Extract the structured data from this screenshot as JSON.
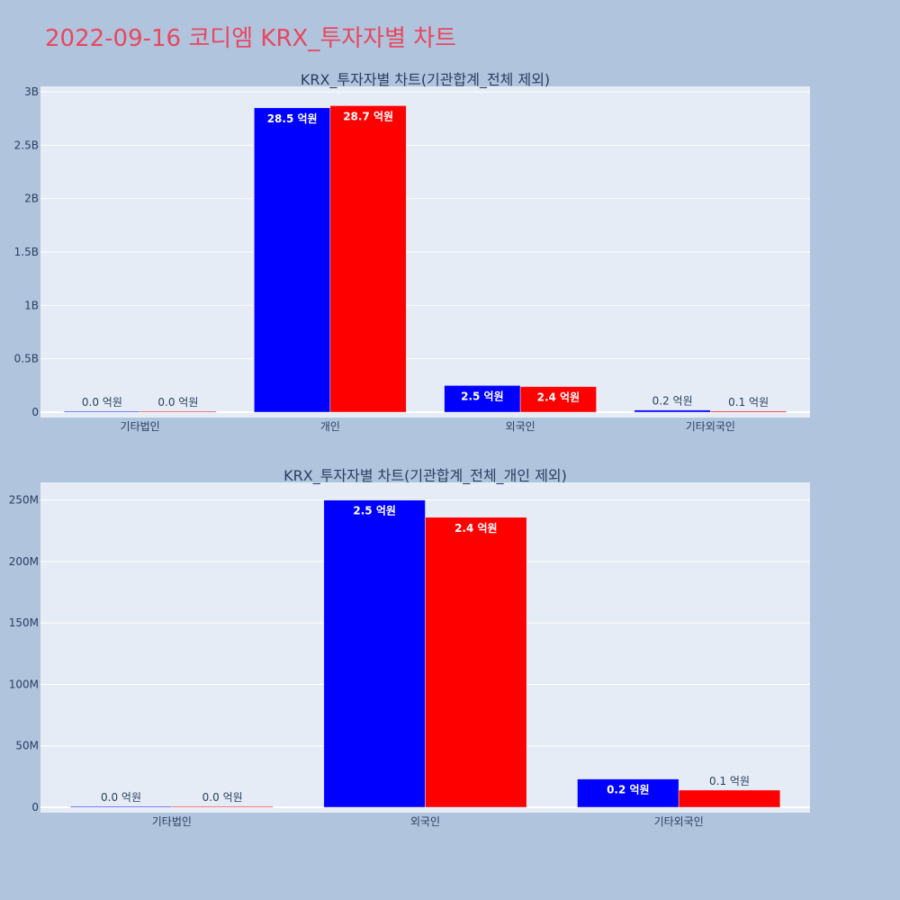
{
  "page_title": "2022-09-16 코디엠 KRX_투자자별 차트",
  "colors": {
    "series_a": "#0000ff",
    "series_b": "#ff0000",
    "plot_bg": "#e5ecf6",
    "page_bg": "#b0c4de",
    "title": "#e8475f"
  },
  "chart_data": [
    {
      "type": "bar",
      "title": "KRX_투자자별 차트(기관합계_전체 제외)",
      "categories": [
        "기타법인",
        "개인",
        "외국인",
        "기타외국인"
      ],
      "series": [
        {
          "values": [
            0,
            2850000000,
            250000000,
            20000000
          ],
          "labels": [
            "0.0 억원",
            "28.5 억원",
            "2.5 억원",
            "0.2 억원"
          ]
        },
        {
          "values": [
            0,
            2870000000,
            240000000,
            10000000
          ],
          "labels": [
            "0.0 억원",
            "28.7 억원",
            "2.4 억원",
            "0.1 억원"
          ]
        }
      ],
      "ylim": [
        0,
        3000000000
      ],
      "yticks": [
        0,
        500000000,
        1000000000,
        1500000000,
        2000000000,
        2500000000,
        3000000000
      ],
      "ytick_labels": [
        "0",
        "0.5B",
        "1B",
        "1.5B",
        "2B",
        "2.5B",
        "3B"
      ],
      "grid": true
    },
    {
      "type": "bar",
      "title": "KRX_투자자별 차트(기관합계_전체_개인 제외)",
      "categories": [
        "기타법인",
        "외국인",
        "기타외국인"
      ],
      "series": [
        {
          "values": [
            0,
            250000000,
            23000000
          ],
          "labels": [
            "0.0 억원",
            "2.5 억원",
            "0.2 억원"
          ]
        },
        {
          "values": [
            0,
            236000000,
            14000000
          ],
          "labels": [
            "0.0 억원",
            "2.4 억원",
            "0.1 억원"
          ]
        }
      ],
      "ylim": [
        0,
        260000000
      ],
      "yticks": [
        0,
        50000000,
        100000000,
        150000000,
        200000000,
        250000000
      ],
      "ytick_labels": [
        "0",
        "50M",
        "100M",
        "150M",
        "200M",
        "250M"
      ],
      "grid": true
    }
  ]
}
